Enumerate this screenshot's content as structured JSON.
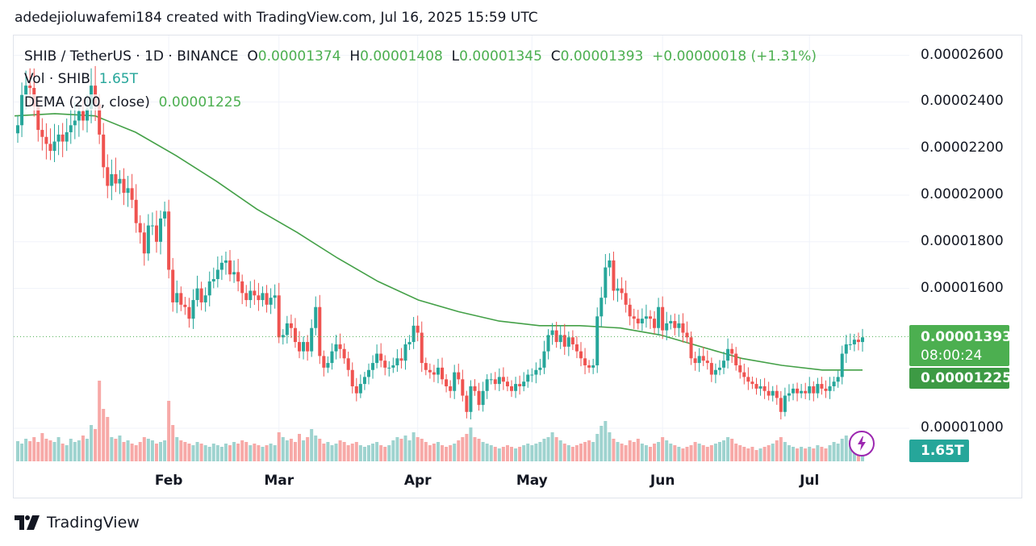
{
  "credit": "adedejioluwafemi184 created with TradingView.com, Jul 16, 2025 15:59 UTC",
  "legend": {
    "symbol": "SHIB / TetherUS · 1D · BINANCE",
    "o_label": "O",
    "o": "0.00001374",
    "h_label": "H",
    "h": "0.00001408",
    "l_label": "L",
    "l": "0.00001345",
    "c_label": "C",
    "c": "0.00001393",
    "change": "+0.00000018 (+1.31%)",
    "vol_label": "Vol · SHIB",
    "vol": "1.65T",
    "dema_label": "DEMA (200, close)",
    "dema": "0.00001225"
  },
  "price_tag": {
    "price": "0.00001393",
    "countdown": "08:00:24"
  },
  "dema_tag": "0.00001225",
  "vol_tag": "1.65T",
  "brand": "TradingView",
  "colors": {
    "up": "#26a69a",
    "down": "#ef5350",
    "dema": "#43a047",
    "vol_up": "#9ed3cf",
    "vol_down": "#f7a9a7",
    "accent": "#9c27b0"
  },
  "icons": {
    "bolt": "lightning-bolt-icon",
    "logo": "tradingview-logo-icon"
  },
  "chart_data": {
    "type": "candlestick",
    "title": "SHIB / TetherUS · 1D · BINANCE",
    "y_range": [
      9.2e-06,
      2.66e-05
    ],
    "y_ticks": [
      "0.00001000",
      "0.00001600",
      "0.00001800",
      "0.00002000",
      "0.00002200",
      "0.00002400",
      "0.00002600"
    ],
    "x_ticks": [
      "Feb",
      "Mar",
      "Apr",
      "May",
      "Jun",
      "Jul"
    ],
    "grid": true,
    "closes": [
      2.3e-05,
      2.43e-05,
      2.47e-05,
      2.46e-05,
      2.38e-05,
      2.28e-05,
      2.25e-05,
      2.22e-05,
      2.19e-05,
      2.23e-05,
      2.26e-05,
      2.23e-05,
      2.27e-05,
      2.3e-05,
      2.32e-05,
      2.36e-05,
      2.32e-05,
      2.37e-05,
      2.47e-05,
      2.39e-05,
      2.26e-05,
      2.12e-05,
      2.04e-05,
      2.09e-05,
      2.05e-05,
      2.07e-05,
      2.01e-05,
      2.03e-05,
      1.98e-05,
      1.88e-05,
      1.84e-05,
      1.75e-05,
      1.87e-05,
      1.87e-05,
      1.8e-05,
      1.9e-05,
      1.93e-05,
      1.68e-05,
      1.54e-05,
      1.58e-05,
      1.53e-05,
      1.52e-05,
      1.47e-05,
      1.55e-05,
      1.6e-05,
      1.54e-05,
      1.57e-05,
      1.63e-05,
      1.64e-05,
      1.68e-05,
      1.71e-05,
      1.72e-05,
      1.66e-05,
      1.67e-05,
      1.63e-05,
      1.58e-05,
      1.55e-05,
      1.59e-05,
      1.57e-05,
      1.55e-05,
      1.58e-05,
      1.53e-05,
      1.56e-05,
      1.57e-05,
      1.39e-05,
      1.4e-05,
      1.45e-05,
      1.43e-05,
      1.37e-05,
      1.33e-05,
      1.37e-05,
      1.33e-05,
      1.43e-05,
      1.52e-05,
      1.31e-05,
      1.26e-05,
      1.28e-05,
      1.33e-05,
      1.36e-05,
      1.34e-05,
      1.3e-05,
      1.25e-05,
      1.18e-05,
      1.15e-05,
      1.19e-05,
      1.22e-05,
      1.25e-05,
      1.28e-05,
      1.32e-05,
      1.29e-05,
      1.26e-05,
      1.26e-05,
      1.27e-05,
      1.3e-05,
      1.29e-05,
      1.36e-05,
      1.37e-05,
      1.44e-05,
      1.41e-05,
      1.28e-05,
      1.25e-05,
      1.24e-05,
      1.23e-05,
      1.26e-05,
      1.21e-05,
      1.18e-05,
      1.16e-05,
      1.24e-05,
      1.21e-05,
      1.14e-05,
      1.07e-05,
      1.18e-05,
      1.16e-05,
      1.1e-05,
      1.16e-05,
      1.21e-05,
      1.21e-05,
      1.19e-05,
      1.22e-05,
      1.2e-05,
      1.18e-05,
      1.16e-05,
      1.19e-05,
      1.18e-05,
      1.2e-05,
      1.23e-05,
      1.23e-05,
      1.25e-05,
      1.26e-05,
      1.33e-05,
      1.4e-05,
      1.42e-05,
      1.37e-05,
      1.4e-05,
      1.35e-05,
      1.39e-05,
      1.36e-05,
      1.33e-05,
      1.3e-05,
      1.27e-05,
      1.26e-05,
      1.27e-05,
      1.48e-05,
      1.56e-05,
      1.69e-05,
      1.72e-05,
      1.59e-05,
      1.6e-05,
      1.58e-05,
      1.53e-05,
      1.48e-05,
      1.47e-05,
      1.45e-05,
      1.47e-05,
      1.48e-05,
      1.47e-05,
      1.43e-05,
      1.52e-05,
      1.42e-05,
      1.45e-05,
      1.46e-05,
      1.43e-05,
      1.45e-05,
      1.41e-05,
      1.39e-05,
      1.3e-05,
      1.28e-05,
      1.31e-05,
      1.29e-05,
      1.28e-05,
      1.23e-05,
      1.25e-05,
      1.26e-05,
      1.29e-05,
      1.34e-05,
      1.32e-05,
      1.27e-05,
      1.24e-05,
      1.22e-05,
      1.2e-05,
      1.19e-05,
      1.17e-05,
      1.18e-05,
      1.16e-05,
      1.14e-05,
      1.16e-05,
      1.13e-05,
      1.07e-05,
      1.14e-05,
      1.15e-05,
      1.17e-05,
      1.15e-05,
      1.16e-05,
      1.15e-05,
      1.18e-05,
      1.15e-05,
      1.19e-05,
      1.17e-05,
      1.16e-05,
      1.18e-05,
      1.2e-05,
      1.22e-05,
      1.32e-05,
      1.36e-05,
      1.36e-05,
      1.38e-05,
      1.37e-05,
      1.39e-05
    ],
    "volume_rel": [
      0.25,
      0.22,
      0.28,
      0.25,
      0.3,
      0.24,
      0.35,
      0.28,
      0.26,
      0.24,
      0.3,
      0.22,
      0.2,
      0.28,
      0.24,
      0.26,
      0.32,
      0.28,
      0.45,
      0.4,
      1.0,
      0.65,
      0.55,
      0.3,
      0.28,
      0.32,
      0.24,
      0.26,
      0.22,
      0.2,
      0.24,
      0.3,
      0.28,
      0.26,
      0.22,
      0.24,
      0.26,
      0.75,
      0.45,
      0.3,
      0.26,
      0.24,
      0.22,
      0.2,
      0.24,
      0.22,
      0.2,
      0.18,
      0.22,
      0.2,
      0.18,
      0.22,
      0.2,
      0.24,
      0.22,
      0.26,
      0.24,
      0.2,
      0.22,
      0.2,
      0.18,
      0.2,
      0.22,
      0.2,
      0.36,
      0.3,
      0.26,
      0.28,
      0.24,
      0.34,
      0.26,
      0.3,
      0.4,
      0.32,
      0.28,
      0.22,
      0.24,
      0.2,
      0.22,
      0.26,
      0.24,
      0.2,
      0.22,
      0.24,
      0.2,
      0.18,
      0.2,
      0.22,
      0.24,
      0.2,
      0.18,
      0.2,
      0.26,
      0.3,
      0.28,
      0.32,
      0.26,
      0.36,
      0.3,
      0.28,
      0.24,
      0.2,
      0.22,
      0.24,
      0.2,
      0.18,
      0.2,
      0.22,
      0.26,
      0.3,
      0.34,
      0.42,
      0.3,
      0.28,
      0.24,
      0.22,
      0.2,
      0.18,
      0.16,
      0.18,
      0.2,
      0.18,
      0.16,
      0.18,
      0.2,
      0.22,
      0.2,
      0.22,
      0.24,
      0.28,
      0.3,
      0.36,
      0.3,
      0.26,
      0.22,
      0.2,
      0.18,
      0.2,
      0.22,
      0.24,
      0.26,
      0.24,
      0.34,
      0.44,
      0.5,
      0.36,
      0.28,
      0.24,
      0.22,
      0.2,
      0.26,
      0.24,
      0.28,
      0.22,
      0.2,
      0.18,
      0.22,
      0.24,
      0.3,
      0.26,
      0.22,
      0.2,
      0.18,
      0.16,
      0.18,
      0.2,
      0.24,
      0.22,
      0.2,
      0.18,
      0.2,
      0.22,
      0.24,
      0.26,
      0.3,
      0.28,
      0.22,
      0.2,
      0.18,
      0.16,
      0.18,
      0.14,
      0.16,
      0.18,
      0.2,
      0.22,
      0.26,
      0.3,
      0.24,
      0.2,
      0.18,
      0.16,
      0.18,
      0.16,
      0.18,
      0.16,
      0.2,
      0.18,
      0.16,
      0.2,
      0.24,
      0.22,
      0.28,
      0.32,
      0.26,
      0.18,
      0.12,
      0.1
    ],
    "dema": [
      2.34e-05,
      2.35e-05,
      2.34e-05,
      2.27e-05,
      2.17e-05,
      2.06e-05,
      1.94e-05,
      1.84e-05,
      1.73e-05,
      1.63e-05,
      1.55e-05,
      1.5e-05,
      1.46e-05,
      1.44e-05,
      1.44e-05,
      1.43e-05,
      1.4e-05,
      1.35e-05,
      1.3e-05,
      1.27e-05,
      1.25e-05,
      1.25e-05
    ],
    "last_close": 1.393e-05
  }
}
